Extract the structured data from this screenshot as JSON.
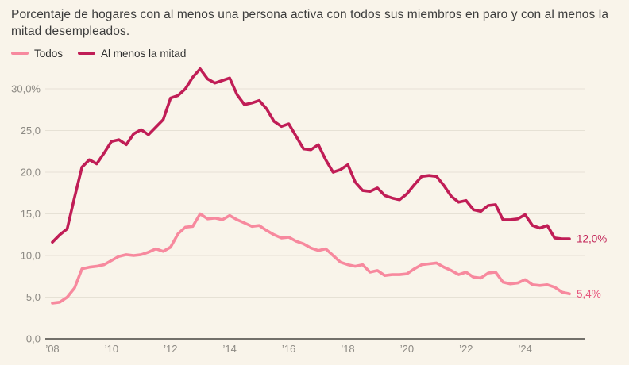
{
  "title": "Porcentaje de hogares con al menos una persona activa con todos sus miembros en paro y con al menos la mitad desempleados.",
  "colors": {
    "background": "#f9f4ea",
    "gridline": "#e6e1d5",
    "axis_line": "#73706a",
    "tick_text": "#8d8a84",
    "title_text": "#3c3c3c",
    "todos_line": "#f7899e",
    "al_menos_line": "#c01d56",
    "todos_end_label": "#e7567d",
    "al_menos_end_label": "#c22458"
  },
  "legend": {
    "items": [
      {
        "label": "Todos",
        "color": "#f7899e"
      },
      {
        "label": "Al menos la mitad",
        "color": "#c01d56"
      }
    ]
  },
  "chart_data": {
    "type": "line",
    "title": "Porcentaje de hogares con al menos una persona activa con todos sus miembros en paro y con al menos la mitad desempleados.",
    "frequency": "quarterly",
    "x_start": "2008-Q1",
    "x_end": "2025-Q3",
    "ylim": [
      0,
      33
    ],
    "grid": "horizontal",
    "legend_position": "top-left",
    "y_ticks": [
      {
        "value": 0,
        "label": "0,0"
      },
      {
        "value": 5,
        "label": "5,0"
      },
      {
        "value": 10,
        "label": "10,0"
      },
      {
        "value": 15,
        "label": "15,0"
      },
      {
        "value": 20,
        "label": "20,0"
      },
      {
        "value": 25,
        "label": "25,0"
      },
      {
        "value": 30,
        "label": "30,0%"
      }
    ],
    "x_ticks": [
      {
        "year": 2008,
        "label": "’08"
      },
      {
        "year": 2010,
        "label": "’10"
      },
      {
        "year": 2012,
        "label": "’12"
      },
      {
        "year": 2014,
        "label": "’14"
      },
      {
        "year": 2016,
        "label": "’16"
      },
      {
        "year": 2018,
        "label": "’18"
      },
      {
        "year": 2020,
        "label": "’20"
      },
      {
        "year": 2022,
        "label": "’22"
      },
      {
        "year": 2024,
        "label": "’24"
      }
    ],
    "series": [
      {
        "name": "Todos",
        "color": "#f7899e",
        "end_label": "5,4%",
        "end_label_color": "#e7567d",
        "values": [
          4.3,
          4.4,
          5.0,
          6.1,
          8.4,
          8.6,
          8.7,
          8.9,
          9.4,
          9.9,
          10.1,
          10.0,
          10.1,
          10.4,
          10.8,
          10.5,
          11.0,
          12.6,
          13.4,
          13.5,
          15.0,
          14.4,
          14.5,
          14.3,
          14.8,
          14.3,
          13.9,
          13.5,
          13.6,
          13.0,
          12.5,
          12.1,
          12.2,
          11.7,
          11.4,
          10.9,
          10.6,
          10.8,
          10.0,
          9.2,
          8.9,
          8.7,
          8.9,
          8.0,
          8.2,
          7.6,
          7.7,
          7.7,
          7.8,
          8.4,
          8.9,
          9.0,
          9.1,
          8.6,
          8.2,
          7.7,
          8.0,
          7.4,
          7.3,
          7.9,
          8.0,
          6.8,
          6.6,
          6.7,
          7.1,
          6.5,
          6.4,
          6.5,
          6.2,
          5.6,
          5.4
        ]
      },
      {
        "name": "Al menos la mitad",
        "color": "#c01d56",
        "end_label": "12,0%",
        "end_label_color": "#c22458",
        "values": [
          11.6,
          12.5,
          13.2,
          17.0,
          20.6,
          21.5,
          21.0,
          22.3,
          23.7,
          23.9,
          23.3,
          24.6,
          25.1,
          24.5,
          25.4,
          26.3,
          28.9,
          29.2,
          30.0,
          31.4,
          32.4,
          31.2,
          30.7,
          31.0,
          31.3,
          29.3,
          28.1,
          28.3,
          28.6,
          27.6,
          26.1,
          25.5,
          25.8,
          24.3,
          22.8,
          22.7,
          23.3,
          21.5,
          20.0,
          20.3,
          20.9,
          18.8,
          17.8,
          17.7,
          18.1,
          17.2,
          16.9,
          16.7,
          17.4,
          18.5,
          19.5,
          19.6,
          19.5,
          18.4,
          17.1,
          16.4,
          16.6,
          15.5,
          15.3,
          16.0,
          16.1,
          14.3,
          14.3,
          14.4,
          14.9,
          13.6,
          13.3,
          13.6,
          12.1,
          12.0,
          12.0
        ]
      }
    ]
  }
}
